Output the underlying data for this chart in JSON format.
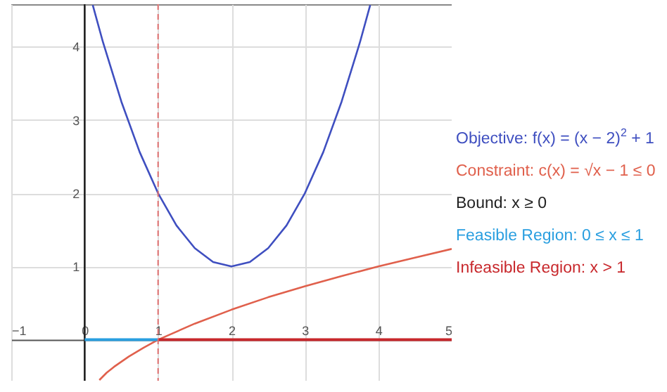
{
  "chart_data": {
    "type": "line",
    "xlim": [
      -1,
      5
    ],
    "ylim": [
      -0.56,
      4.58
    ],
    "xticks": [
      -1,
      0,
      1,
      2,
      3,
      4,
      5
    ],
    "yticks": [
      1,
      2,
      3,
      4
    ],
    "grid": true,
    "legend": "right",
    "line_style": "solid",
    "series": [
      {
        "name": "Objective: f(x) = (x − 2)$^{2}$ + 1",
        "color": "#3f4fc0",
        "x": [
          0.11,
          0.25,
          0.5,
          0.75,
          1,
          1.25,
          1.5,
          1.75,
          2,
          2.25,
          2.5,
          2.75,
          3,
          3.25,
          3.5,
          3.75,
          3.89
        ],
        "values": [
          4.57,
          4.06,
          3.25,
          2.56,
          2,
          1.56,
          1.25,
          1.06,
          1,
          1.06,
          1.25,
          1.56,
          2,
          2.56,
          3.25,
          4.06,
          4.57
        ]
      },
      {
        "name": "Constraint: c(x) = √x − 1 ≤ 0",
        "color": "#e0604c",
        "x": [
          0.2,
          0.3,
          0.4,
          0.6,
          0.8,
          1,
          1.5,
          2,
          2.5,
          3,
          3.5,
          4,
          4.5,
          5
        ],
        "values": [
          -0.55,
          -0.45,
          -0.37,
          -0.23,
          -0.11,
          0,
          0.22,
          0.41,
          0.58,
          0.73,
          0.87,
          1,
          1.12,
          1.24
        ]
      },
      {
        "name": "Bound: x ≥ 0",
        "color": "#222222",
        "x": [
          0,
          0
        ],
        "values": [
          -0.56,
          4.58
        ]
      },
      {
        "name": "Feasible Region: 0 ≤ x ≤ 1",
        "color": "#2a9fe0",
        "x": [
          0,
          1
        ],
        "values": [
          0,
          0
        ]
      },
      {
        "name": "Infeasible Region: x > 1",
        "color": "#c8282c",
        "x": [
          1,
          5
        ],
        "values": [
          0,
          0
        ]
      }
    ],
    "ref_lines": [
      {
        "axis": "x",
        "value": 1,
        "color": "#e07070",
        "line_style": "dashed"
      }
    ]
  }
}
